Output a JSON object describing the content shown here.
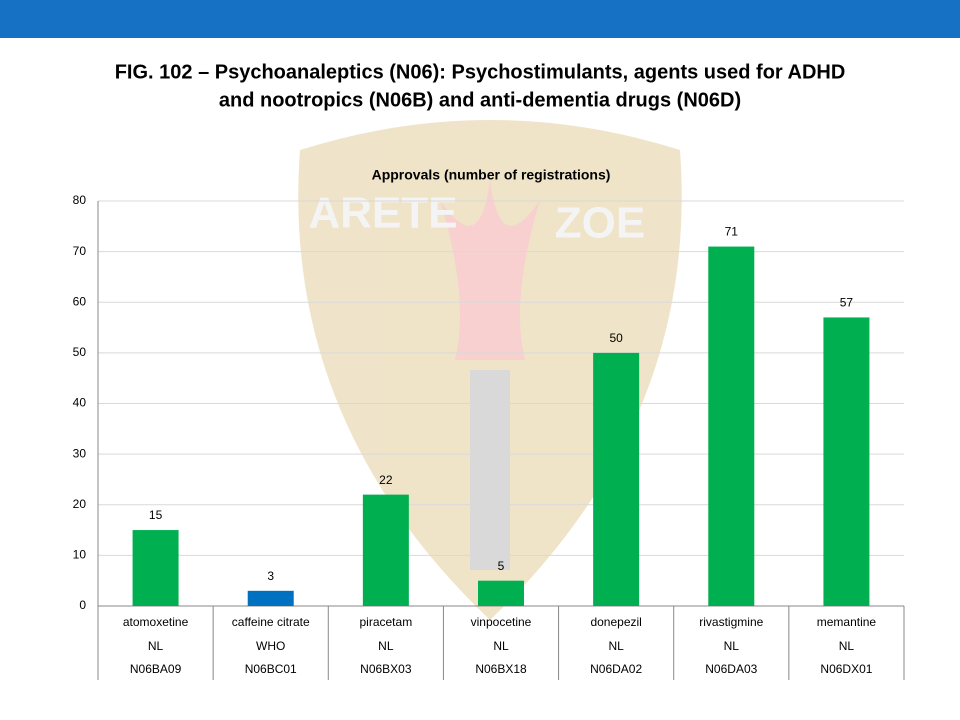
{
  "slide_title": [
    "FIG. 102 – Psychoanaleptics (N06): Psychostimulants, agents used for ADHD",
    "and nootropics (N06B) and anti-dementia drugs (N06D)"
  ],
  "watermark": [
    "ARETE",
    "ZOE"
  ],
  "chart_data": {
    "type": "bar",
    "title": "Approvals (number of registrations)",
    "categories": [
      "atomoxetine",
      "caffeine citrate",
      "piracetam",
      "vinpocetine",
      "donepezil",
      "rivastigmine",
      "memantine"
    ],
    "authorities": [
      "NL",
      "WHO",
      "NL",
      "NL",
      "NL",
      "NL",
      "NL"
    ],
    "codes": [
      "N06BA09",
      "N06BC01",
      "N06BX03",
      "N06BX18",
      "N06DA02",
      "N06DA03",
      "N06DX01"
    ],
    "values": [
      15,
      3,
      22,
      5,
      50,
      71,
      57
    ],
    "colors": [
      "#00b050",
      "#0070c0",
      "#00b050",
      "#00b050",
      "#00b050",
      "#00b050",
      "#00b050"
    ],
    "ylim": [
      0,
      80
    ],
    "yticks": [
      0,
      10,
      20,
      30,
      40,
      50,
      60,
      70,
      80
    ],
    "grid": true,
    "data_labels": true
  }
}
